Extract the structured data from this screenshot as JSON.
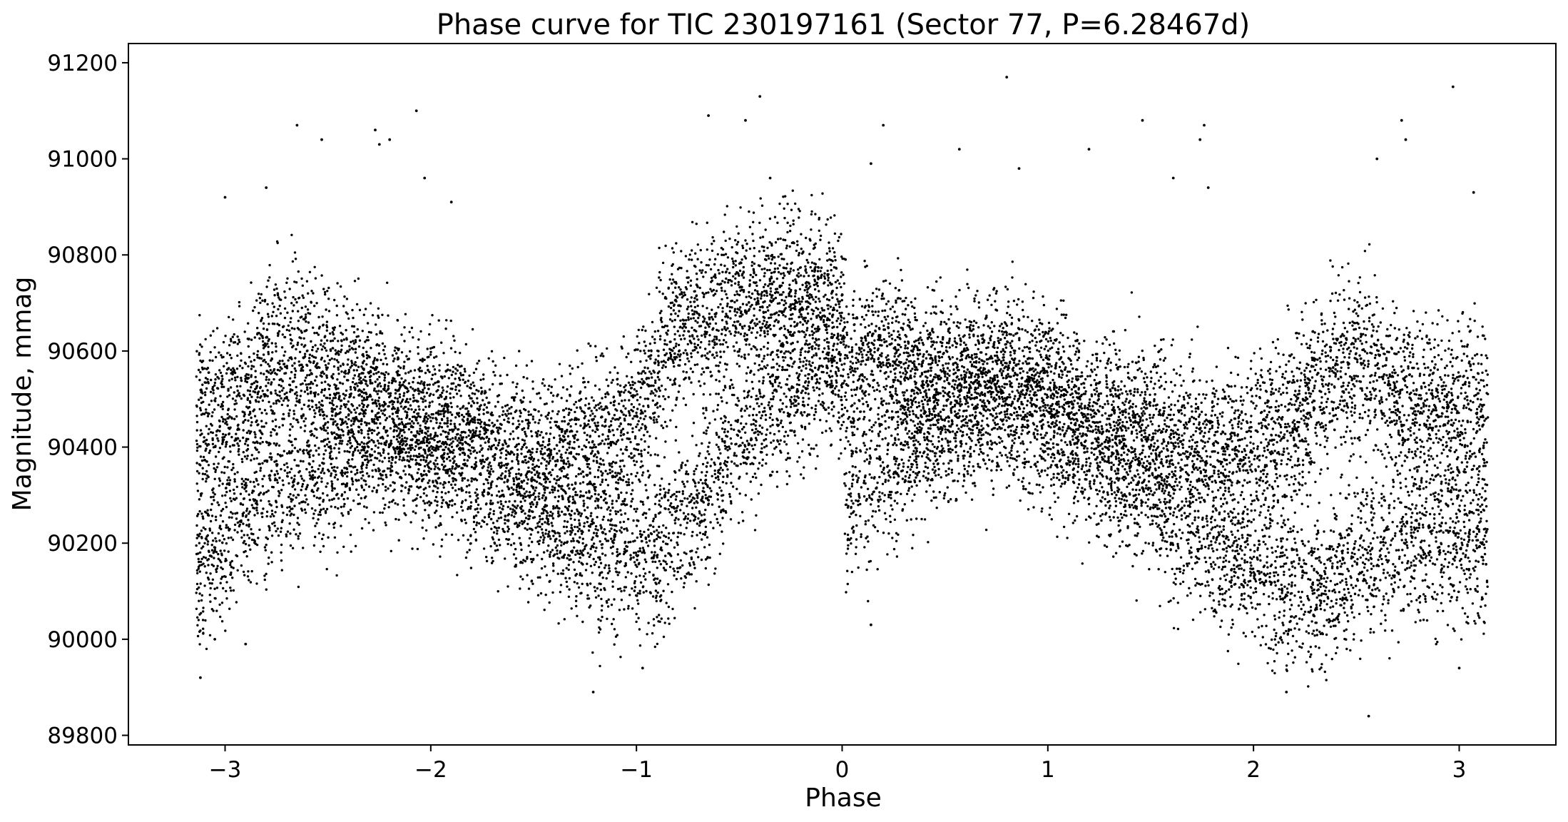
{
  "chart_data": {
    "type": "scatter",
    "title": "Phase curve for TIC 230197161 (Sector 77, P=6.28467d)",
    "xlabel": "Phase",
    "ylabel": "Magnitude, mmag",
    "xlim": [
      -3.47,
      3.47
    ],
    "ylim": [
      89780,
      91240
    ],
    "x_ticks": [
      {
        "value": -3,
        "label": "−3"
      },
      {
        "value": -2,
        "label": "−2"
      },
      {
        "value": -1,
        "label": "−1"
      },
      {
        "value": 0,
        "label": "0"
      },
      {
        "value": 1,
        "label": "1"
      },
      {
        "value": 2,
        "label": "2"
      },
      {
        "value": 3,
        "label": "3"
      }
    ],
    "y_ticks": [
      {
        "value": 89800,
        "label": "89800"
      },
      {
        "value": 90000,
        "label": "90000"
      },
      {
        "value": 90200,
        "label": "90200"
      },
      {
        "value": 90400,
        "label": "90400"
      },
      {
        "value": 90600,
        "label": "90600"
      },
      {
        "value": 90800,
        "label": "90800"
      },
      {
        "value": 91000,
        "label": "91000"
      },
      {
        "value": 91200,
        "label": "91200"
      }
    ],
    "grid": false,
    "marker_color": "#000000",
    "series": [
      {
        "x": [
          -3.14,
          -3.1,
          -3.05,
          -3.0,
          -2.95,
          -2.9,
          -2.85,
          -2.8,
          -2.7,
          -2.6,
          -2.5,
          -2.4,
          -2.3,
          -2.2,
          -2.1,
          -2.0,
          -1.9,
          -1.8,
          -1.7,
          -1.6,
          -1.5,
          -1.4,
          -1.3,
          -1.2,
          -1.1,
          -1.0,
          -0.95,
          -0.9,
          -0.85,
          -0.8,
          -0.7,
          -0.6,
          -0.5,
          -0.4,
          -0.3,
          -0.2,
          -0.1,
          -0.05,
          0.0,
          0.02,
          0.05,
          0.1,
          0.2,
          0.3,
          0.4,
          0.5,
          0.6,
          0.7,
          0.8,
          0.9,
          1.0,
          1.1,
          1.2,
          1.3,
          1.4,
          1.5,
          1.6,
          1.7,
          1.8,
          1.9,
          2.0,
          2.1,
          2.2,
          2.3,
          2.4,
          2.5,
          2.6,
          2.7,
          2.8,
          2.9,
          3.0,
          3.1,
          3.14
        ],
        "y_upper": [
          90450,
          90460,
          90470,
          90480,
          90500,
          90510,
          90550,
          90600,
          90600,
          90580,
          90560,
          90540,
          90520,
          90510,
          90490,
          90470,
          90450,
          90430,
          90410,
          90390,
          90380,
          90380,
          90390,
          90410,
          90440,
          90470,
          90500,
          90560,
          90620,
          90650,
          90660,
          90680,
          90690,
          90700,
          90720,
          90730,
          90720,
          90700,
          90680,
          90560,
          90540,
          90570,
          90600,
          90580,
          90550,
          90540,
          90540,
          90550,
          90560,
          90540,
          90510,
          90480,
          90460,
          90450,
          90440,
          90430,
          90420,
          90410,
          90400,
          90400,
          90410,
          90430,
          90460,
          90510,
          90560,
          90580,
          90560,
          90520,
          90490,
          90480,
          90470,
          90460,
          90450
        ],
        "y_lower": [
          90180,
          90180,
          90200,
          90230,
          90270,
          90300,
          90320,
          90330,
          90340,
          90350,
          90370,
          90390,
          90400,
          90400,
          90400,
          90390,
          90370,
          90340,
          90300,
          90270,
          90250,
          90230,
          90210,
          90190,
          90180,
          90190,
          90200,
          90180,
          90200,
          90240,
          90280,
          90340,
          90410,
          90460,
          90500,
          90540,
          90560,
          90560,
          90540,
          90280,
          90280,
          90300,
          90360,
          90380,
          90420,
          90450,
          90470,
          90480,
          90480,
          90470,
          90440,
          90410,
          90380,
          90360,
          90330,
          90300,
          90270,
          90240,
          90210,
          90180,
          90160,
          90130,
          90110,
          90110,
          90130,
          90160,
          90180,
          90200,
          90220,
          90220,
          90210,
          90200,
          90190
        ]
      }
    ],
    "outliers": [
      {
        "x": -3.12,
        "y": 89920
      },
      {
        "x": -3.05,
        "y": 90000
      },
      {
        "x": -3.0,
        "y": 90920
      },
      {
        "x": -2.9,
        "y": 89990
      },
      {
        "x": -2.8,
        "y": 90940
      },
      {
        "x": -2.65,
        "y": 91070
      },
      {
        "x": -2.53,
        "y": 91040
      },
      {
        "x": -2.27,
        "y": 91060
      },
      {
        "x": -2.25,
        "y": 91030
      },
      {
        "x": -2.2,
        "y": 91040
      },
      {
        "x": -2.07,
        "y": 91100
      },
      {
        "x": -2.03,
        "y": 90960
      },
      {
        "x": -1.9,
        "y": 90910
      },
      {
        "x": -1.21,
        "y": 89890
      },
      {
        "x": -0.97,
        "y": 89940
      },
      {
        "x": -0.65,
        "y": 91090
      },
      {
        "x": -0.47,
        "y": 91080
      },
      {
        "x": -0.4,
        "y": 91130
      },
      {
        "x": -0.35,
        "y": 90960
      },
      {
        "x": 0.14,
        "y": 90030
      },
      {
        "x": 0.14,
        "y": 90990
      },
      {
        "x": 0.2,
        "y": 91070
      },
      {
        "x": 0.57,
        "y": 91020
      },
      {
        "x": 0.8,
        "y": 91170
      },
      {
        "x": 0.86,
        "y": 90980
      },
      {
        "x": 1.2,
        "y": 91020
      },
      {
        "x": 1.46,
        "y": 91080
      },
      {
        "x": 1.61,
        "y": 90960
      },
      {
        "x": 1.74,
        "y": 91040
      },
      {
        "x": 1.76,
        "y": 91070
      },
      {
        "x": 1.78,
        "y": 90940
      },
      {
        "x": 2.16,
        "y": 89890
      },
      {
        "x": 2.56,
        "y": 89840
      },
      {
        "x": 2.6,
        "y": 91000
      },
      {
        "x": 2.72,
        "y": 91080
      },
      {
        "x": 2.74,
        "y": 91040
      },
      {
        "x": 2.97,
        "y": 91150
      },
      {
        "x": 3.0,
        "y": 89940
      },
      {
        "x": 3.07,
        "y": 90930
      }
    ]
  }
}
